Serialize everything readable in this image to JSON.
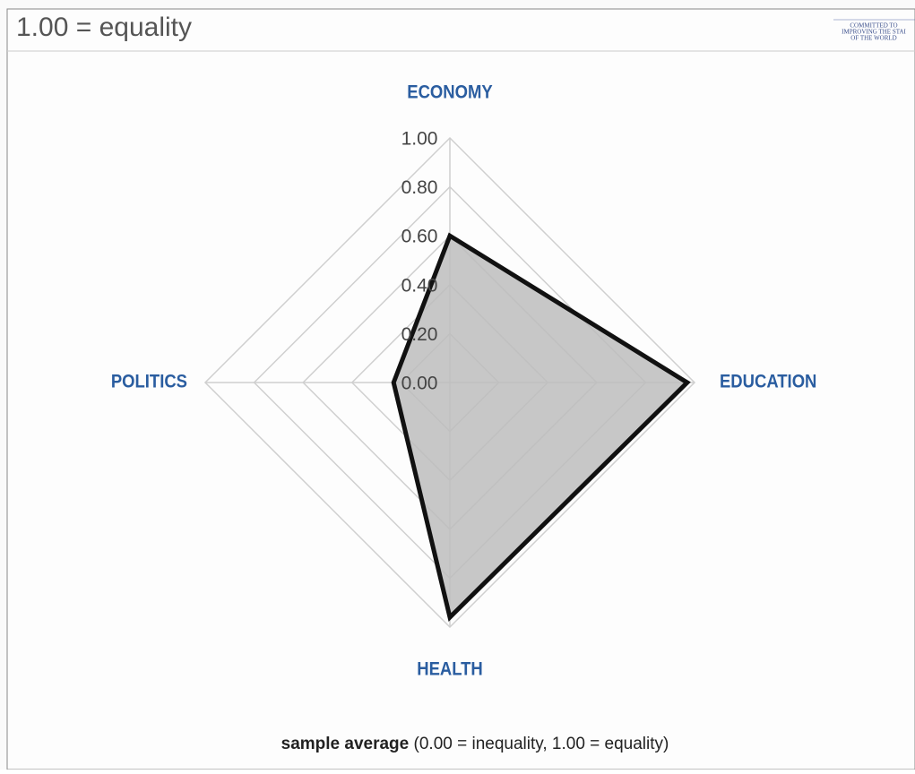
{
  "header": {
    "title": "1.00 = equality",
    "logo_lines": [
      "COMMITTED TO",
      "IMPROVING THE STAI",
      "OF THE WORLD"
    ]
  },
  "chart_data": {
    "type": "radar",
    "categories": [
      "ECONOMY",
      "EDUCATION",
      "HEALTH",
      "POLITICS"
    ],
    "series": [
      {
        "name": "sample average",
        "color": "#bdbdbd",
        "values": [
          0.6,
          0.97,
          0.96,
          0.23
        ]
      }
    ],
    "rlim": [
      0,
      1
    ],
    "rticks": [
      {
        "value": 0,
        "label": "0.00"
      },
      {
        "value": 0.2,
        "label": "0.20"
      },
      {
        "value": 0.4,
        "label": "0.40"
      },
      {
        "value": 0.6,
        "label": "0.60"
      },
      {
        "value": 0.8,
        "label": "0.80"
      },
      {
        "value": 1,
        "label": "1.00"
      }
    ],
    "caption": "(0.00 = inequality, 1.00 = equality)"
  }
}
